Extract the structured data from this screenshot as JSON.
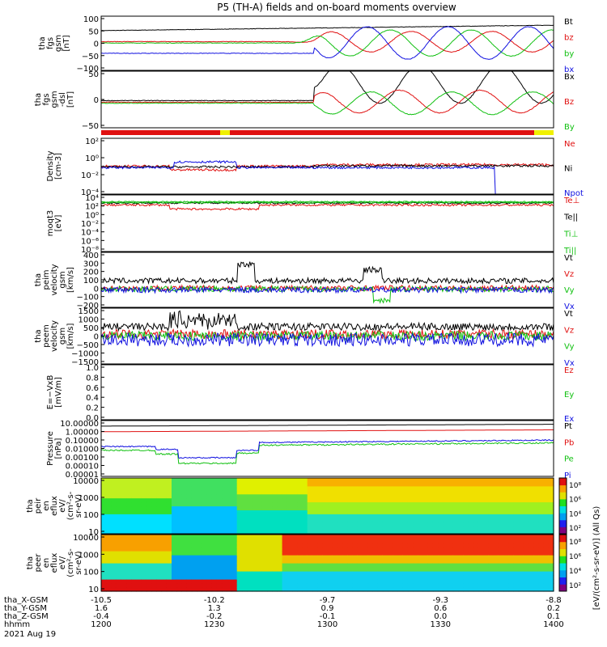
{
  "title": "P5 (TH-A) fields and on-board moments overview",
  "date_label": "2021 Aug 19",
  "colors": {
    "black": "#000000",
    "red": "#e01010",
    "green": "#10c010",
    "blue": "#1010e0",
    "yellow": "#f0f000"
  },
  "chart_data": [
    {
      "type": "line",
      "id": "fgs_gsm",
      "ylabel": [
        "tha",
        "fgs",
        "gsm",
        "[nT]"
      ],
      "yticks": [
        "100",
        "50",
        "0",
        "−50",
        "−100"
      ],
      "ylim": [
        -100,
        100
      ],
      "series": [
        {
          "name": "Bt",
          "color": "#000000"
        },
        {
          "name": "bz",
          "color": "#e01010"
        },
        {
          "name": "by",
          "color": "#10c010"
        },
        {
          "name": "bx",
          "color": "#1010e0"
        }
      ]
    },
    {
      "type": "line",
      "id": "fgs_gse",
      "ylabel": [
        "tha",
        "fgs",
        "gsm",
        "-dsl",
        "[nT]"
      ],
      "yticks": [
        "50",
        "0",
        "−50"
      ],
      "ylim": [
        -75,
        100
      ],
      "series": [
        {
          "name": "Bx",
          "color": "#000000"
        },
        {
          "name": "Bz",
          "color": "#e01010"
        },
        {
          "name": "By",
          "color": "#10c010"
        }
      ]
    },
    {
      "type": "line",
      "id": "density",
      "ylabel": [
        "Density",
        "[cm-3]"
      ],
      "yticks": [
        "10²",
        "10⁰",
        "10⁻²",
        "10⁻⁴"
      ],
      "ylim": [
        -5,
        2.8
      ],
      "log": true,
      "series": [
        {
          "name": "Ne",
          "color": "#e01010"
        },
        {
          "name": "Ni",
          "color": "#000000"
        },
        {
          "name": "Npot",
          "color": "#1010e0"
        }
      ]
    },
    {
      "type": "line",
      "id": "temperature",
      "ylabel": [
        "moqt3",
        "[eV]"
      ],
      "yticks": [
        "10⁴",
        "10²",
        "10⁰",
        "10⁻²",
        "10⁻⁴",
        "10⁻⁶",
        "10⁻⁸"
      ],
      "ylim": [
        -9,
        5
      ],
      "log": true,
      "series": [
        {
          "name": "Te⊥",
          "color": "#e01010"
        },
        {
          "name": "Te||",
          "color": "#000000"
        },
        {
          "name": "Ti⊥",
          "color": "#10c010"
        },
        {
          "name": "Ti||",
          "color": "#10c010"
        }
      ]
    },
    {
      "type": "line",
      "id": "peim_velocity",
      "ylabel": [
        "tha",
        "peim",
        "velocity",
        "gsm",
        "[km/s]"
      ],
      "yticks": [
        "400",
        "300",
        "200",
        "100",
        "0",
        "−100",
        "−200"
      ],
      "ylim": [
        -200,
        400
      ],
      "series": [
        {
          "name": "Vt",
          "color": "#000000"
        },
        {
          "name": "Vz",
          "color": "#e01010"
        },
        {
          "name": "Vy",
          "color": "#10c010"
        },
        {
          "name": "Vx",
          "color": "#1010e0"
        }
      ]
    },
    {
      "type": "line",
      "id": "peem_velocity",
      "ylabel": [
        "tha",
        "peem",
        "velocity",
        "gsm",
        "[km/s]"
      ],
      "yticks": [
        "1500",
        "1000",
        "500",
        "0",
        "−500",
        "−1000",
        "−1500"
      ],
      "ylim": [
        -1500,
        1500
      ],
      "series": [
        {
          "name": "Vt",
          "color": "#000000"
        },
        {
          "name": "Vz",
          "color": "#e01010"
        },
        {
          "name": "Vy",
          "color": "#10c010"
        },
        {
          "name": "Vx",
          "color": "#1010e0"
        }
      ]
    },
    {
      "type": "line",
      "id": "efield",
      "ylabel": [
        "E=−VxB",
        "[mV/m]"
      ],
      "yticks": [
        "1.0",
        "0.8",
        "0.6",
        "0.4",
        "0.2",
        "0.0"
      ],
      "ylim": [
        0,
        1
      ],
      "series": [
        {
          "name": "Ez",
          "color": "#e01010"
        },
        {
          "name": "Ey",
          "color": "#10c010"
        },
        {
          "name": "Ex",
          "color": "#1010e0"
        }
      ]
    },
    {
      "type": "line",
      "id": "pressure",
      "ylabel": [
        "Pressure",
        "[nPa]"
      ],
      "yticks": [
        "10.00000",
        "1.00000",
        "0.10000",
        "0.01000",
        "0.00100",
        "0.00010",
        "0.00001"
      ],
      "ylim": [
        -5,
        1
      ],
      "log": true,
      "series": [
        {
          "name": "Pt",
          "color": "#000000"
        },
        {
          "name": "Pb",
          "color": "#e01010"
        },
        {
          "name": "Pe",
          "color": "#10c010"
        },
        {
          "name": "Pi",
          "color": "#1010e0"
        }
      ]
    },
    {
      "type": "heatmap",
      "id": "peir_en",
      "ylabel": [
        "tha",
        "peir",
        "en",
        "eflux",
        "eV/",
        "(cm²-s-",
        "sr-eV)"
      ],
      "yticks": [
        "10000",
        "1000",
        "100",
        "10"
      ],
      "ylim": [
        5,
        30000
      ],
      "log": true
    },
    {
      "type": "heatmap",
      "id": "peer_en",
      "ylabel": [
        "tha",
        "peer",
        "en",
        "eflux",
        "eV/",
        "(cm²-s-",
        "sr-eV)"
      ],
      "yticks": [
        "10000",
        "1000",
        "100",
        "10"
      ],
      "ylim": [
        5,
        30000
      ],
      "log": true
    }
  ],
  "colorbar": {
    "label": "[eV/(cm²-s-sr-eV)]",
    "label2": "[eV/(cm²-s-sr-eV)] (All Qs)",
    "ticks_top": [
      "10⁸",
      "10⁶",
      "10⁴",
      "10²"
    ],
    "ticks_bottom": [
      "10⁸",
      "10⁶",
      "10⁴",
      "10²"
    ]
  },
  "x_axis": {
    "hhmm": [
      "1200",
      "1230",
      "1300",
      "1330",
      "1400"
    ],
    "rows": [
      {
        "label": "tha_X-GSM",
        "values": [
          "-10.5",
          "-10.2",
          "-9.7",
          "-9.3",
          "-8.8"
        ]
      },
      {
        "label": "tha_Y-GSM",
        "values": [
          "1.6",
          "1.3",
          "0.9",
          "0.6",
          "0.2"
        ]
      },
      {
        "label": "tha_Z-GSM",
        "values": [
          "-0.4",
          "-0.2",
          "-0.1",
          "0.0",
          "0.1"
        ]
      },
      {
        "label": "hhmm",
        "values": [
          "1200",
          "1230",
          "1300",
          "1330",
          "1400"
        ]
      }
    ]
  }
}
